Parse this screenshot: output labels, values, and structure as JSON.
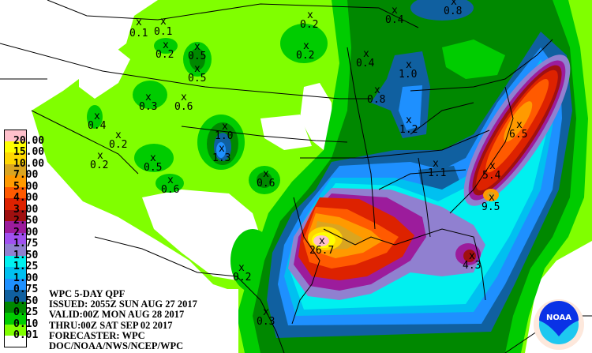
{
  "product": {
    "lines": [
      "WPC 5-DAY QPF",
      "ISSUED: 2055Z SUN AUG 27 2017",
      "VALID:00Z MON AUG 28 2017",
      "THRU:00Z SAT SEP 02 2017",
      "FORECASTER: WPC",
      "DOC/NOAA/NWS/NCEP/WPC"
    ]
  },
  "legend": {
    "labels": [
      "20.00",
      "15.00",
      "10.00",
      "7.00",
      "5.00",
      "4.00",
      "3.00",
      "2.50",
      "2.00",
      "1.75",
      "1.50",
      "1.25",
      "1.00",
      "0.75",
      "0.50",
      "0.25",
      "0.10",
      "0.01"
    ],
    "colors": [
      "#ffc0cb",
      "#ffff00",
      "#ffd700",
      "#daa520",
      "#ff9a00",
      "#ff5a00",
      "#dd2200",
      "#a01010",
      "#9c1c9c",
      "#a050f0",
      "#9080d0",
      "#00f0f0",
      "#00c0f0",
      "#1e90ff",
      "#1060a0",
      "#008800",
      "#00cc00",
      "#80ff00",
      "#ffffff"
    ]
  },
  "point_values": [
    "0.1",
    "0.1",
    "0.2",
    "0.5",
    "0.5",
    "0.3",
    "0.6",
    "0.4",
    "0.2",
    "0.2",
    "0.5",
    "0.6",
    "1.0",
    "1.3",
    "0.6",
    "0.2",
    "0.2",
    "0.4",
    "0.8",
    "0.4",
    "1.0",
    "0.8",
    "1.2",
    "6.5",
    "5.4",
    "9.5",
    "1.1",
    "26.7",
    "4.3",
    "0.2",
    "0.3"
  ],
  "logo": {
    "text": "NOAA",
    "colors": {
      "dark": "#0a32e6",
      "light": "#1ec8f0"
    }
  }
}
